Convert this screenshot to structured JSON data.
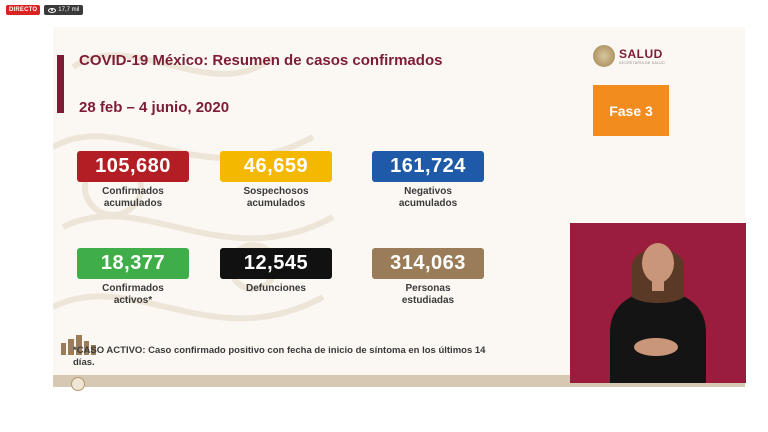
{
  "stream": {
    "live_label": "DIRECTO",
    "viewers": "17,7 mil"
  },
  "slide": {
    "title": "COVID-19 México: Resumen de casos confirmados",
    "date_range": "28 feb – 4 junio, 2020",
    "logo": {
      "name": "SALUD",
      "subtitle": "SECRETARÍA DE SALUD"
    },
    "phase": "Fase 3",
    "stats": [
      {
        "value": "105,680",
        "label_line1": "Confirmados",
        "label_line2": "acumulados",
        "color": "#b31e24"
      },
      {
        "value": "46,659",
        "label_line1": "Sospechosos",
        "label_line2": "acumulados",
        "color": "#f5b800"
      },
      {
        "value": "161,724",
        "label_line1": "Negativos",
        "label_line2": "acumulados",
        "color": "#1e5aa8"
      },
      {
        "value": "18,377",
        "label_line1": "Confirmados",
        "label_line2": "activos*",
        "color": "#3fae49"
      },
      {
        "value": "12,545",
        "label_line1": "Defunciones",
        "label_line2": "",
        "color": "#111111"
      },
      {
        "value": "314,063",
        "label_line1": "Personas",
        "label_line2": "estudiadas",
        "color": "#9a7d58"
      }
    ],
    "footnote": "*CASO ACTIVO: Caso confirmado positivo con fecha de inicio de síntoma en los últimos 14 días."
  },
  "colors": {
    "primary": "#7c1d35",
    "phase": "#f28c1e",
    "interpreter_bg": "#9a1d3e"
  }
}
